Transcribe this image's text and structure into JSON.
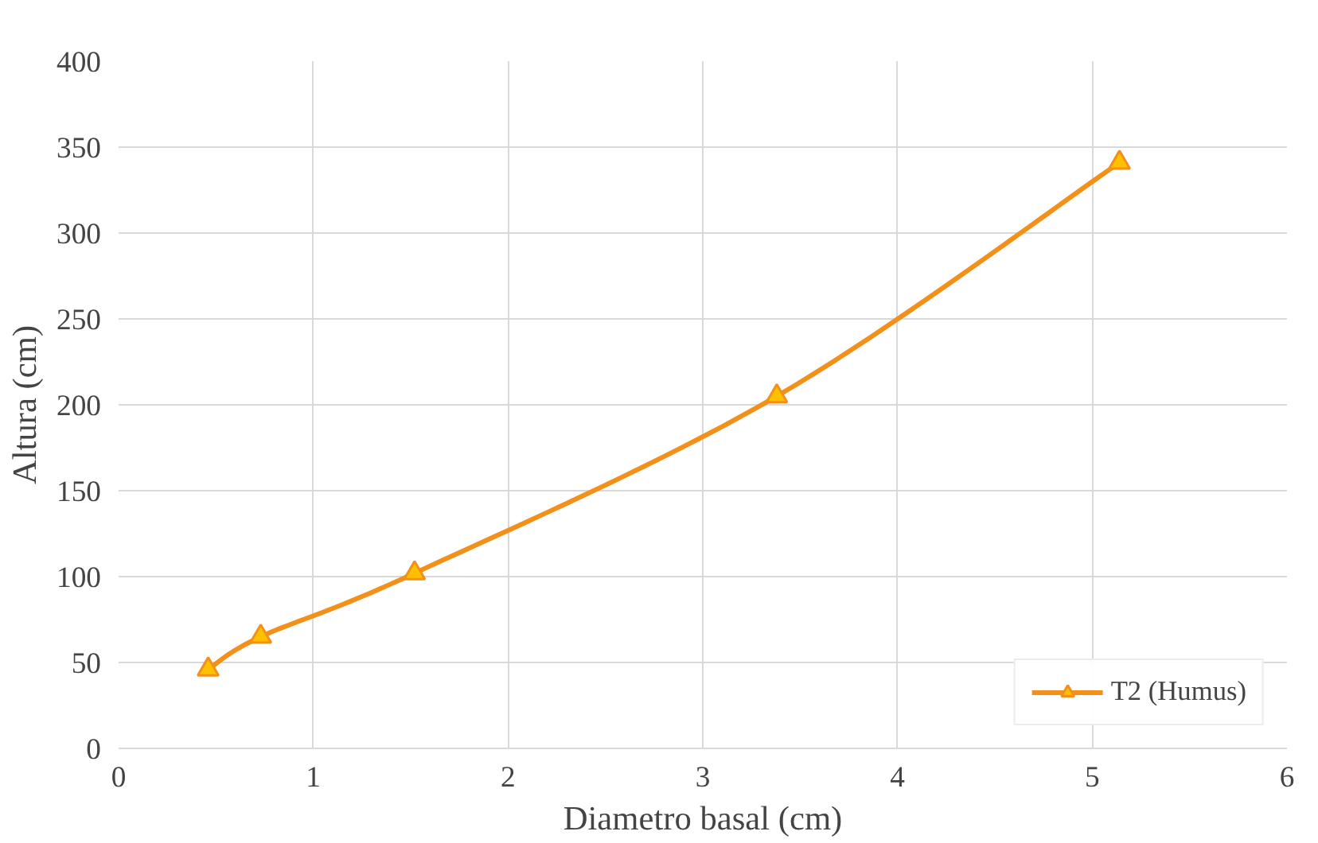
{
  "chart_data": {
    "type": "line",
    "xlabel": "Diametro basal (cm)",
    "ylabel": "Altura (cm)",
    "x": [
      0.46,
      0.73,
      1.52,
      3.38,
      5.14
    ],
    "series": [
      {
        "name": "T2 (Humus)",
        "color": "#f39019",
        "values": [
          46,
          65,
          102,
          205,
          341
        ]
      }
    ],
    "xlim": [
      0,
      6
    ],
    "xticks": [
      0,
      1,
      2,
      3,
      4,
      5,
      6
    ],
    "ylim": [
      0,
      400
    ],
    "yticks": [
      0,
      50,
      100,
      150,
      200,
      250,
      300,
      350,
      400
    ],
    "grid": true,
    "legend": "bottom right",
    "marker": "triangle",
    "line_style": "solid"
  }
}
